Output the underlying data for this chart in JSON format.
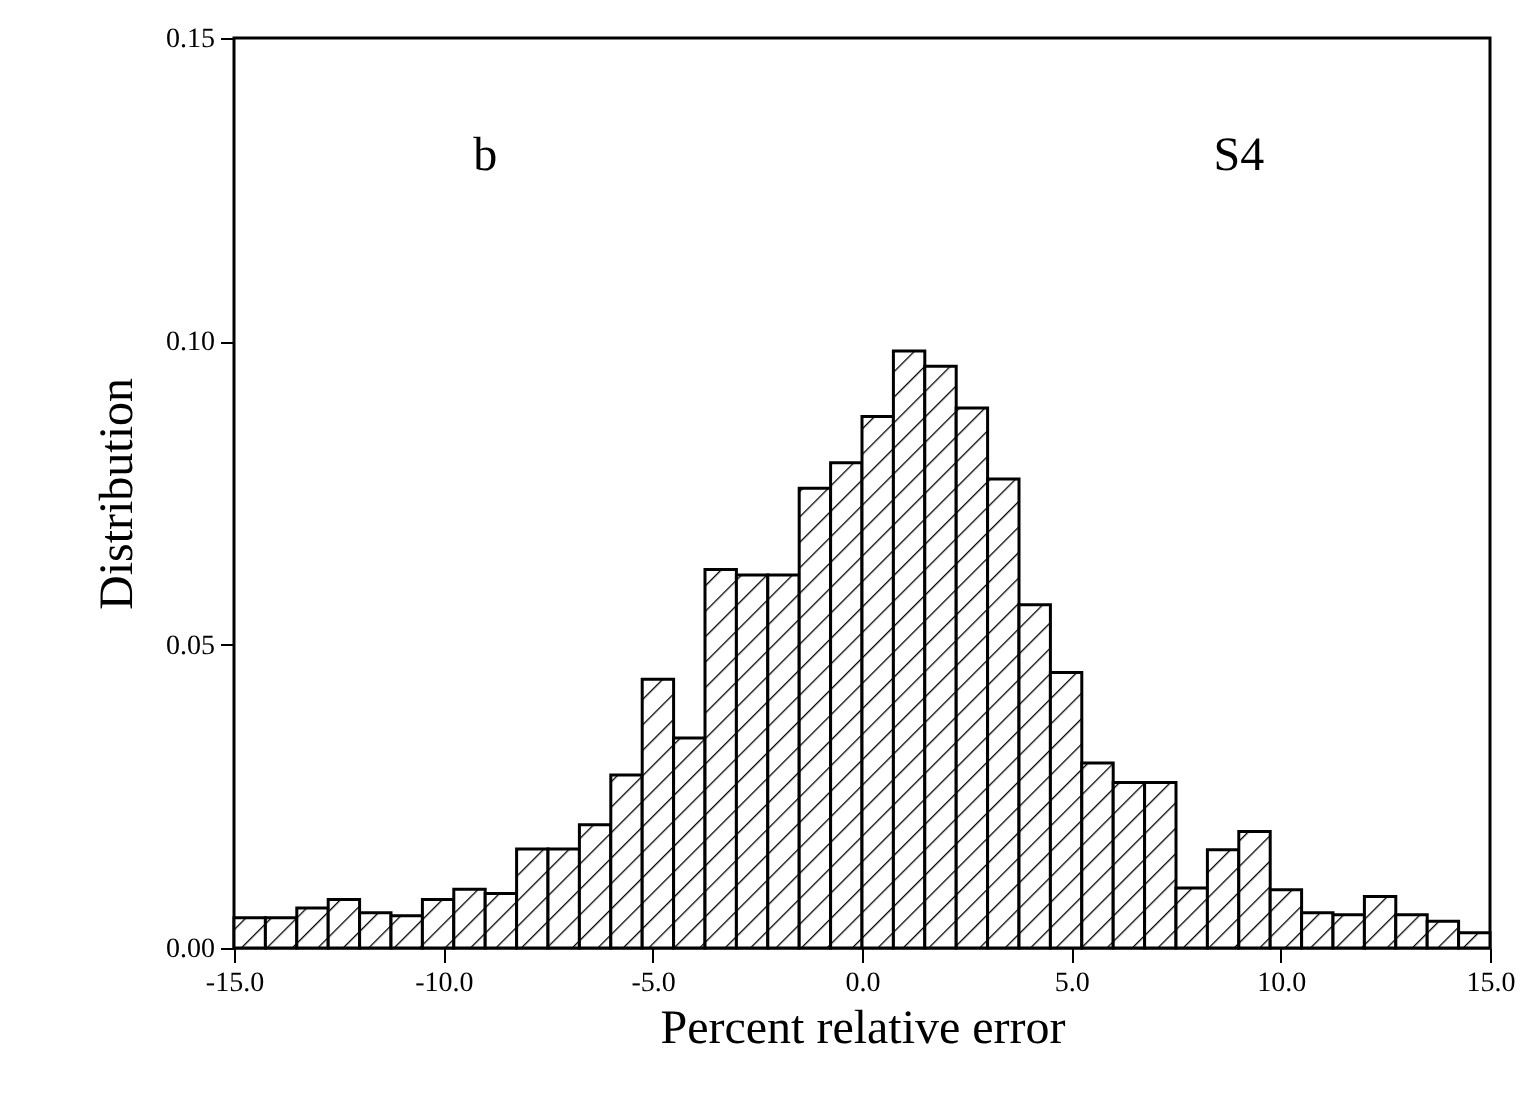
{
  "chart_data": {
    "type": "histogram",
    "xlabel": "Percent relative error",
    "ylabel": "Distribution",
    "annotations": [
      "b",
      "S4"
    ],
    "bins": [
      -15,
      -14.25,
      -13.5,
      -12.75,
      -12,
      -11.25,
      -10.5,
      -9.75,
      -9,
      -8.25,
      -7.5,
      -6.75,
      -6,
      -5.25,
      -4.5,
      -3.75,
      -3,
      -2.25,
      -1.5,
      -0.75,
      0,
      0.75,
      1.5,
      2.25,
      3,
      3.75,
      4.5,
      5.25,
      6,
      6.75,
      7.5,
      8.25,
      9,
      9.75,
      10.5,
      11.25,
      12,
      12.75,
      13.5,
      14.25,
      15
    ],
    "values": [
      0.005,
      0.005,
      0.0066,
      0.008,
      0.0058,
      0.0053,
      0.008,
      0.0097,
      0.009,
      0.0163,
      0.0163,
      0.0203,
      0.0285,
      0.0443,
      0.0346,
      0.0624,
      0.0615,
      0.0615,
      0.0758,
      0.08,
      0.0876,
      0.0984,
      0.0959,
      0.089,
      0.0773,
      0.0566,
      0.0454,
      0.0305,
      0.0273,
      0.0273,
      0.0099,
      0.0162,
      0.0192,
      0.0096,
      0.0058,
      0.0055,
      0.0085,
      0.0055,
      0.0044,
      0.0025
    ],
    "color": "#000000",
    "xlim": [
      -15,
      15
    ],
    "xticks": [
      {
        "value": -15,
        "label": "-15.0"
      },
      {
        "value": -10,
        "label": "-10.0"
      },
      {
        "value": -5,
        "label": "-5.0"
      },
      {
        "value": 0,
        "label": "0.0"
      },
      {
        "value": 5,
        "label": "5.0"
      },
      {
        "value": 10,
        "label": "10.0"
      },
      {
        "value": 15,
        "label": "15.0"
      }
    ],
    "ylim": [
      0,
      0.15
    ],
    "yticks": [
      {
        "value": 0,
        "label": "0.00"
      },
      {
        "value": 0.05,
        "label": "0.05"
      },
      {
        "value": 0.1,
        "label": "0.10"
      },
      {
        "value": 0.15,
        "label": "0.15"
      }
    ],
    "grid": false
  }
}
